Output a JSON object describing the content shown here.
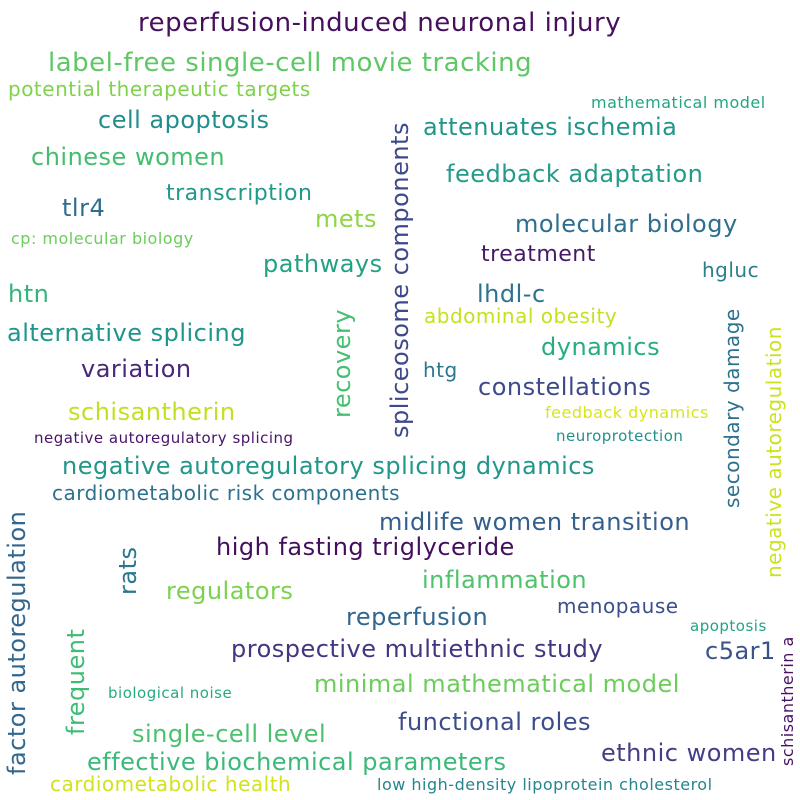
{
  "words": [
    {
      "text": "reperfusion-induced neuronal injury",
      "color": "#46105f"
    },
    {
      "text": "label-free single-cell movie tracking",
      "color": "#5fc765"
    },
    {
      "text": "potential therapeutic targets",
      "color": "#7ed24c"
    },
    {
      "text": "mathematical model",
      "color": "#22a683"
    },
    {
      "text": "cell apoptosis",
      "color": "#218d8c"
    },
    {
      "text": "attenuates ischemia",
      "color": "#21958b"
    },
    {
      "text": "chinese women",
      "color": "#44bd70"
    },
    {
      "text": "feedback adaptation",
      "color": "#229b89"
    },
    {
      "text": "transcription",
      "color": "#1f9a89"
    },
    {
      "text": "tlr4",
      "color": "#2f6d8e"
    },
    {
      "text": "mets",
      "color": "#8fd644"
    },
    {
      "text": "cp: molecular biology",
      "color": "#6bcd5a"
    },
    {
      "text": "molecular biology",
      "color": "#2e6e8e"
    },
    {
      "text": "treatment",
      "color": "#461a68"
    },
    {
      "text": "pathways",
      "color": "#24a185"
    },
    {
      "text": "hgluc",
      "color": "#2a7f8e"
    },
    {
      "text": "htn",
      "color": "#33b579"
    },
    {
      "text": "lhdl-c",
      "color": "#2c738e"
    },
    {
      "text": "abdominal obesity",
      "color": "#c7e020"
    },
    {
      "text": "alternative splicing",
      "color": "#1f958b"
    },
    {
      "text": "dynamics",
      "color": "#27ad81"
    },
    {
      "text": "variation",
      "color": "#482878"
    },
    {
      "text": "htg",
      "color": "#2b788e"
    },
    {
      "text": "constellations",
      "color": "#3e4a89"
    },
    {
      "text": "schisantherin",
      "color": "#c4df22"
    },
    {
      "text": "feedback dynamics",
      "color": "#d9e51b"
    },
    {
      "text": "negative autoregulatory splicing",
      "color": "#481467"
    },
    {
      "text": "neuroprotection",
      "color": "#21918c"
    },
    {
      "text": "negative autoregulatory splicing dynamics",
      "color": "#21968a"
    },
    {
      "text": "cardiometabolic risk components",
      "color": "#2d718e"
    },
    {
      "text": "midlife women transition",
      "color": "#355f8d"
    },
    {
      "text": "high fasting triglyceride",
      "color": "#430f5d"
    },
    {
      "text": "inflammation",
      "color": "#4ec36b"
    },
    {
      "text": "regulators",
      "color": "#7cd250"
    },
    {
      "text": "menopause",
      "color": "#3c4f8a"
    },
    {
      "text": "reperfusion",
      "color": "#31668e"
    },
    {
      "text": "apoptosis",
      "color": "#20a486"
    },
    {
      "text": "prospective multiethnic study",
      "color": "#453581"
    },
    {
      "text": "c5ar1",
      "color": "#3b528b"
    },
    {
      "text": "minimal mathematical model",
      "color": "#6ccd5a"
    },
    {
      "text": "biological noise",
      "color": "#25ab82"
    },
    {
      "text": "functional roles",
      "color": "#3d4d8a"
    },
    {
      "text": "single-cell level",
      "color": "#4ac16d"
    },
    {
      "text": "ethnic women",
      "color": "#433e85"
    },
    {
      "text": "effective biochemical parameters",
      "color": "#3ab97a"
    },
    {
      "text": "cardiometabolic health",
      "color": "#d2e21b"
    },
    {
      "text": "low high-density lipoprotein cholesterol",
      "color": "#25858e"
    },
    {
      "text": "spliceosome components",
      "color": "#3e4989"
    },
    {
      "text": "recovery",
      "color": "#45bf70"
    },
    {
      "text": "secondary damage",
      "color": "#2c728e"
    },
    {
      "text": "negative autoregulation",
      "color": "#cde11d"
    },
    {
      "text": "factor autoregulation",
      "color": "#31678e"
    },
    {
      "text": "rats",
      "color": "#2a788e"
    },
    {
      "text": "frequent",
      "color": "#3dbc74"
    },
    {
      "text": "schisantherin a",
      "color": "#471164"
    }
  ]
}
